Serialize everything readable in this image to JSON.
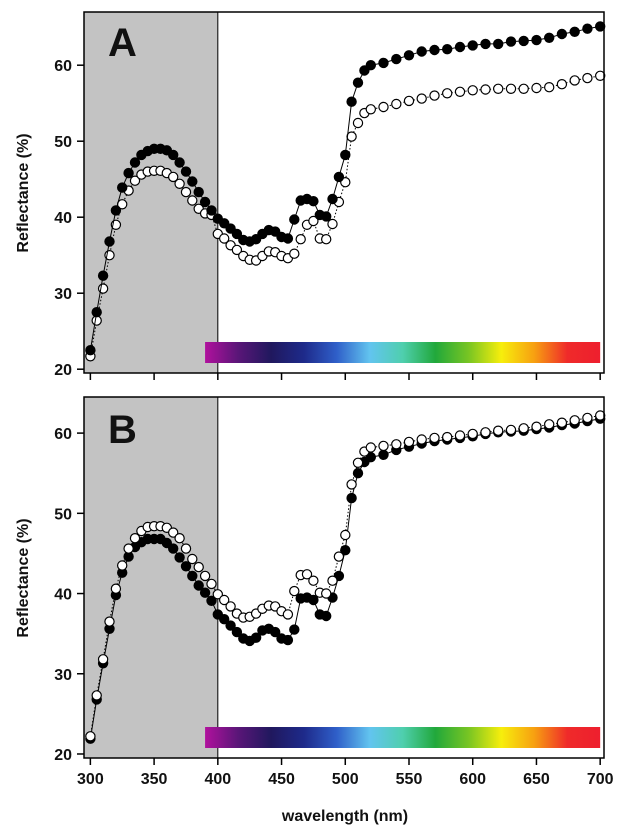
{
  "chart_data": [
    {
      "type": "scatter",
      "panel_label": "A",
      "ylabel": "Reflectance (%)",
      "xlim": [
        295,
        703
      ],
      "ylim": [
        19.5,
        67
      ],
      "yticks": [
        20,
        30,
        40,
        50,
        60
      ],
      "xticks": [
        300,
        350,
        400,
        450,
        500,
        550,
        600,
        650,
        700
      ],
      "shaded_region": [
        295,
        400
      ],
      "spectrum_bar": {
        "x_range": [
          390,
          700
        ],
        "colors": [
          "#b0119d",
          "#5a1678",
          "#20185e",
          "#1e2a8a",
          "#2f5fc9",
          "#62c4ef",
          "#4fcfae",
          "#21a83b",
          "#78c523",
          "#f7ee0c",
          "#f7a011",
          "#ef2a2a",
          "#ee1f2e"
        ]
      },
      "grid": false,
      "series": [
        {
          "marker": "filled",
          "line": "solid",
          "color": "#000000",
          "x": [
            300,
            305,
            310,
            315,
            320,
            325,
            330,
            335,
            340,
            345,
            350,
            355,
            360,
            365,
            370,
            375,
            380,
            385,
            390,
            395,
            400,
            405,
            410,
            415,
            420,
            425,
            430,
            435,
            440,
            445,
            450,
            455,
            460,
            465,
            470,
            475,
            480,
            485,
            490,
            495,
            500,
            505,
            510,
            515,
            520,
            530,
            540,
            550,
            560,
            570,
            580,
            590,
            600,
            610,
            620,
            630,
            640,
            650,
            660,
            670,
            680,
            690,
            700
          ],
          "y": [
            22.5,
            27.5,
            32.3,
            36.8,
            40.9,
            43.9,
            45.8,
            47.2,
            48.2,
            48.7,
            49.0,
            49.0,
            48.8,
            48.2,
            47.2,
            46.0,
            44.7,
            43.3,
            42.0,
            40.9,
            39.8,
            39.2,
            38.5,
            37.8,
            37.0,
            36.8,
            37.1,
            37.8,
            38.3,
            38.1,
            37.4,
            37.2,
            39.7,
            42.2,
            42.4,
            42.1,
            40.3,
            40.1,
            42.4,
            45.3,
            48.2,
            55.2,
            57.7,
            59.3,
            60.0,
            60.3,
            60.8,
            61.3,
            61.8,
            62.0,
            62.1,
            62.4,
            62.6,
            62.8,
            62.8,
            63.1,
            63.2,
            63.3,
            63.6,
            64.1,
            64.4,
            64.8,
            65.1
          ]
        },
        {
          "marker": "open",
          "line": "dotted",
          "color": "#000000",
          "x": [
            300,
            305,
            310,
            315,
            320,
            325,
            330,
            335,
            340,
            345,
            350,
            355,
            360,
            365,
            370,
            375,
            380,
            385,
            390,
            395,
            400,
            405,
            410,
            415,
            420,
            425,
            430,
            435,
            440,
            445,
            450,
            455,
            460,
            465,
            470,
            475,
            480,
            485,
            490,
            495,
            500,
            505,
            510,
            515,
            520,
            530,
            540,
            550,
            560,
            570,
            580,
            590,
            600,
            610,
            620,
            630,
            640,
            650,
            660,
            670,
            680,
            690,
            700
          ],
          "y": [
            21.7,
            26.4,
            30.6,
            35.0,
            39.0,
            41.7,
            43.5,
            44.8,
            45.6,
            46.0,
            46.1,
            46.1,
            45.8,
            45.3,
            44.4,
            43.3,
            42.2,
            41.1,
            40.5,
            40.3,
            37.8,
            37.2,
            36.3,
            35.7,
            34.9,
            34.4,
            34.3,
            34.9,
            35.5,
            35.4,
            34.9,
            34.6,
            35.2,
            37.1,
            39.0,
            39.5,
            37.2,
            37.1,
            39.1,
            42.0,
            44.6,
            50.6,
            52.4,
            53.7,
            54.2,
            54.5,
            54.9,
            55.3,
            55.6,
            56.0,
            56.3,
            56.5,
            56.7,
            56.8,
            56.9,
            56.9,
            56.9,
            57.0,
            57.1,
            57.5,
            58.0,
            58.3,
            58.6
          ]
        }
      ]
    },
    {
      "type": "scatter",
      "panel_label": "B",
      "ylabel": "Reflectance (%)",
      "xlabel": "wavelength (nm)",
      "xlim": [
        295,
        703
      ],
      "ylim": [
        19.5,
        64.5
      ],
      "yticks": [
        20,
        30,
        40,
        50,
        60
      ],
      "xticks": [
        300,
        350,
        400,
        450,
        500,
        550,
        600,
        650,
        700
      ],
      "xtick_labels": [
        "300",
        "350",
        "400",
        "450",
        "500",
        "550",
        "600",
        "650",
        "700"
      ],
      "shaded_region": [
        295,
        400
      ],
      "spectrum_bar": {
        "x_range": [
          390,
          700
        ],
        "colors": [
          "#b0119d",
          "#5a1678",
          "#20185e",
          "#1e2a8a",
          "#2f5fc9",
          "#62c4ef",
          "#4fcfae",
          "#21a83b",
          "#78c523",
          "#f7ee0c",
          "#f7a011",
          "#ef2a2a",
          "#ee1f2e"
        ]
      },
      "grid": false,
      "series": [
        {
          "marker": "filled",
          "line": "solid",
          "color": "#000000",
          "x": [
            300,
            305,
            310,
            315,
            320,
            325,
            330,
            335,
            340,
            345,
            350,
            355,
            360,
            365,
            370,
            375,
            380,
            385,
            390,
            395,
            400,
            405,
            410,
            415,
            420,
            425,
            430,
            435,
            440,
            445,
            450,
            455,
            460,
            465,
            470,
            475,
            480,
            485,
            490,
            495,
            500,
            505,
            510,
            515,
            520,
            530,
            540,
            550,
            560,
            570,
            580,
            590,
            600,
            610,
            620,
            630,
            640,
            650,
            660,
            670,
            680,
            690,
            700
          ],
          "y": [
            21.9,
            26.8,
            31.3,
            35.6,
            39.8,
            42.6,
            44.6,
            45.8,
            46.4,
            46.8,
            46.8,
            46.8,
            46.3,
            45.6,
            44.5,
            43.4,
            42.2,
            41.0,
            40.1,
            39.1,
            37.4,
            36.8,
            36.0,
            35.2,
            34.4,
            34.1,
            34.5,
            35.4,
            35.6,
            35.2,
            34.4,
            34.2,
            35.5,
            39.4,
            39.5,
            39.2,
            37.4,
            37.2,
            39.5,
            42.2,
            45.4,
            51.9,
            55.0,
            56.4,
            57.0,
            57.3,
            57.9,
            58.3,
            58.7,
            59.0,
            59.2,
            59.4,
            59.6,
            59.9,
            60.1,
            60.2,
            60.3,
            60.5,
            60.7,
            61.0,
            61.2,
            61.5,
            61.8
          ]
        },
        {
          "marker": "open",
          "line": "dotted",
          "color": "#000000",
          "x": [
            300,
            305,
            310,
            315,
            320,
            325,
            330,
            335,
            340,
            345,
            350,
            355,
            360,
            365,
            370,
            375,
            380,
            385,
            390,
            395,
            400,
            405,
            410,
            415,
            420,
            425,
            430,
            435,
            440,
            445,
            450,
            455,
            460,
            465,
            470,
            475,
            480,
            485,
            490,
            495,
            500,
            505,
            510,
            515,
            520,
            530,
            540,
            550,
            560,
            570,
            580,
            590,
            600,
            610,
            620,
            630,
            640,
            650,
            660,
            670,
            680,
            690,
            700
          ],
          "y": [
            22.2,
            27.3,
            31.8,
            36.5,
            40.6,
            43.5,
            45.6,
            46.9,
            47.8,
            48.3,
            48.4,
            48.4,
            48.2,
            47.6,
            46.9,
            45.6,
            44.3,
            43.3,
            42.2,
            41.2,
            39.9,
            39.2,
            38.4,
            37.5,
            37.0,
            37.1,
            37.5,
            38.1,
            38.5,
            38.4,
            37.8,
            37.4,
            40.3,
            42.3,
            42.4,
            41.6,
            40.1,
            40.0,
            41.6,
            44.6,
            47.3,
            53.6,
            56.3,
            57.7,
            58.2,
            58.4,
            58.6,
            58.9,
            59.2,
            59.4,
            59.5,
            59.7,
            59.9,
            60.1,
            60.3,
            60.4,
            60.6,
            60.8,
            61.1,
            61.3,
            61.6,
            61.9,
            62.2
          ]
        }
      ]
    }
  ]
}
